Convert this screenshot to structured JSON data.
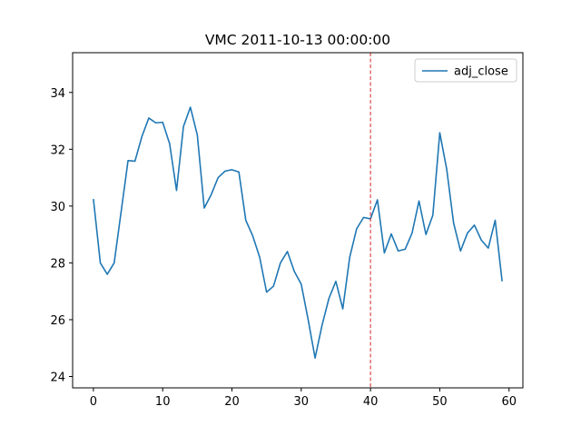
{
  "chart_data": {
    "type": "line",
    "title": "VMC 2011-10-13 00:00:00",
    "xlabel": "",
    "ylabel": "",
    "xlim": [
      -3,
      62
    ],
    "ylim": [
      23.6,
      35.4
    ],
    "xticks": [
      0,
      10,
      20,
      30,
      40,
      50,
      60
    ],
    "yticks": [
      24,
      26,
      28,
      30,
      32,
      34
    ],
    "grid": false,
    "legend": {
      "position": "top-right",
      "entries": [
        "adj_close"
      ]
    },
    "series": [
      {
        "name": "adj_close",
        "color": "#1f77b4",
        "x": [
          0,
          1,
          2,
          3,
          4,
          5,
          6,
          7,
          8,
          9,
          10,
          11,
          12,
          13,
          14,
          15,
          16,
          17,
          18,
          19,
          20,
          21,
          22,
          23,
          24,
          25,
          26,
          27,
          28,
          29,
          30,
          31,
          32,
          33,
          34,
          35,
          36,
          37,
          38,
          39,
          40,
          41,
          42,
          43,
          44,
          45,
          46,
          47,
          48,
          49,
          50,
          51,
          52,
          53,
          54,
          55,
          56,
          57,
          58,
          59
        ],
        "values": [
          30.25,
          28.0,
          27.6,
          28.0,
          29.8,
          31.6,
          31.58,
          32.45,
          33.1,
          32.93,
          32.95,
          32.2,
          30.55,
          32.8,
          33.48,
          32.5,
          29.93,
          30.4,
          31.0,
          31.23,
          31.28,
          31.2,
          29.5,
          28.95,
          28.2,
          26.97,
          27.18,
          28.0,
          28.4,
          27.7,
          27.25,
          26.0,
          24.65,
          25.8,
          26.75,
          27.35,
          26.38,
          28.2,
          29.2,
          29.6,
          29.55,
          30.22,
          28.35,
          29.02,
          28.42,
          28.48,
          29.05,
          30.18,
          29.0,
          29.68,
          32.58,
          31.3,
          29.4,
          28.42,
          29.05,
          29.33,
          28.8,
          28.52,
          29.5,
          27.35
        ]
      }
    ],
    "annotations": [
      {
        "type": "vline",
        "x": 40,
        "color": "#d62728",
        "style": "dashed"
      }
    ]
  }
}
